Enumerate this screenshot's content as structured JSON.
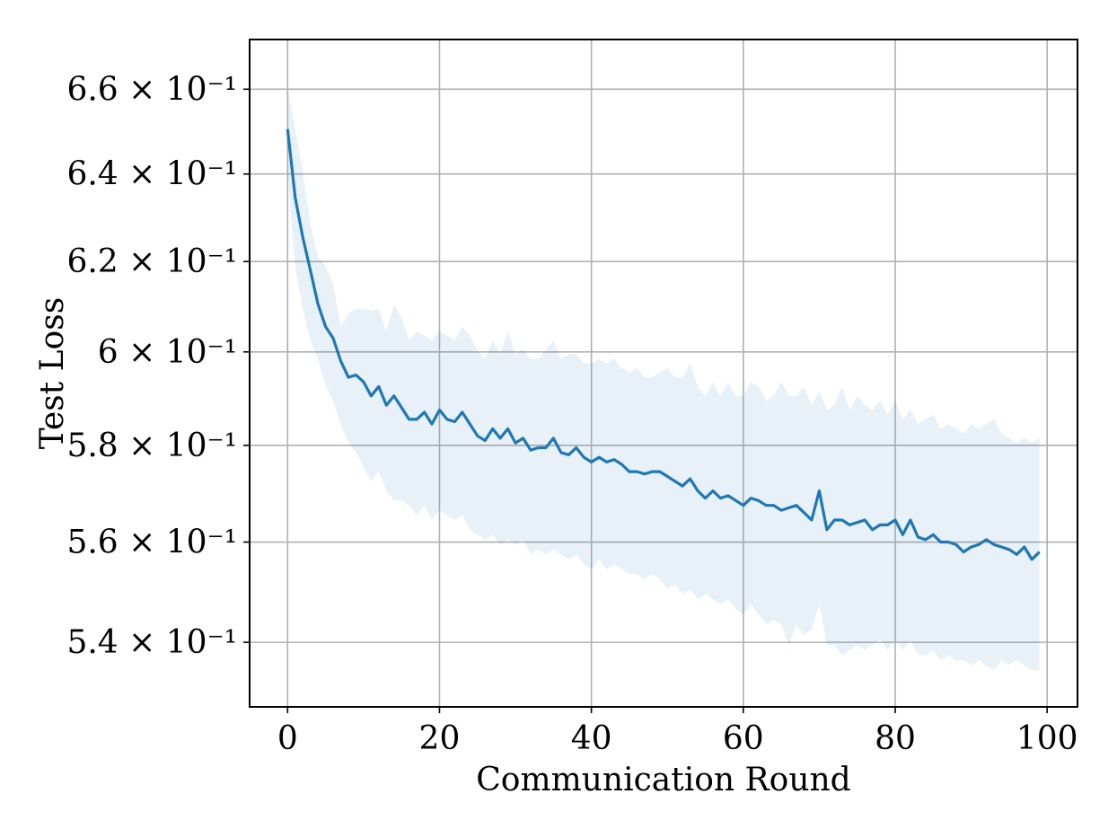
{
  "chart_data": {
    "type": "line",
    "title": "",
    "xlabel": "Communication Round",
    "ylabel": "Test Loss",
    "xlim": [
      -5,
      104
    ],
    "ylim": [
      0.5275,
      0.672
    ],
    "yscale": "log",
    "grid": true,
    "x_ticks": [
      0,
      20,
      40,
      60,
      80,
      100
    ],
    "y_ticks": [
      {
        "value": 0.54,
        "label": "5.4 × 10⁻¹"
      },
      {
        "value": 0.56,
        "label": "5.6 × 10⁻¹"
      },
      {
        "value": 0.58,
        "label": "5.8 × 10⁻¹"
      },
      {
        "value": 0.6,
        "label": "6 × 10⁻¹"
      },
      {
        "value": 0.62,
        "label": "6.2 × 10⁻¹"
      },
      {
        "value": 0.64,
        "label": "6.4 × 10⁻¹"
      },
      {
        "value": 0.66,
        "label": "6.6 × 10⁻¹"
      }
    ],
    "colors": {
      "line": "#1f77b4",
      "band": "#1f77b4"
    },
    "series": [
      {
        "x": [
          0,
          1,
          2,
          3,
          4,
          5,
          6,
          7,
          8,
          9,
          10,
          11,
          12,
          13,
          14,
          15,
          16,
          17,
          18,
          19,
          20,
          21,
          22,
          23,
          24,
          25,
          26,
          27,
          28,
          29,
          30,
          31,
          32,
          33,
          34,
          35,
          36,
          37,
          38,
          39,
          40,
          41,
          42,
          43,
          44,
          45,
          46,
          47,
          48,
          49,
          50,
          51,
          52,
          53,
          54,
          55,
          56,
          57,
          58,
          59,
          60,
          61,
          62,
          63,
          64,
          65,
          66,
          67,
          68,
          69,
          70,
          71,
          72,
          73,
          74,
          75,
          76,
          77,
          78,
          79,
          80,
          81,
          82,
          83,
          84,
          85,
          86,
          87,
          88,
          89,
          90,
          91,
          92,
          93,
          94,
          95,
          96,
          97,
          98,
          99
        ],
        "y": [
          0.6505,
          0.6345,
          0.6255,
          0.618,
          0.6105,
          0.6055,
          0.603,
          0.598,
          0.5945,
          0.595,
          0.5935,
          0.5905,
          0.5925,
          0.5885,
          0.5905,
          0.588,
          0.5855,
          0.5855,
          0.587,
          0.5845,
          0.5875,
          0.5855,
          0.585,
          0.587,
          0.5845,
          0.582,
          0.581,
          0.5835,
          0.5815,
          0.5835,
          0.5805,
          0.5815,
          0.579,
          0.5795,
          0.5795,
          0.5815,
          0.5785,
          0.578,
          0.5795,
          0.5775,
          0.5765,
          0.5775,
          0.5765,
          0.577,
          0.576,
          0.5745,
          0.5745,
          0.574,
          0.5745,
          0.5745,
          0.5735,
          0.5725,
          0.5715,
          0.573,
          0.5705,
          0.569,
          0.5705,
          0.569,
          0.5695,
          0.5685,
          0.5675,
          0.569,
          0.5685,
          0.5675,
          0.5675,
          0.5665,
          0.567,
          0.5675,
          0.566,
          0.5645,
          0.5705,
          0.5625,
          0.5645,
          0.5645,
          0.5635,
          0.564,
          0.5645,
          0.5625,
          0.5635,
          0.5635,
          0.5645,
          0.5615,
          0.5645,
          0.561,
          0.5605,
          0.5615,
          0.56,
          0.56,
          0.5595,
          0.558,
          0.559,
          0.5595,
          0.5605,
          0.5595,
          0.559,
          0.5585,
          0.5575,
          0.559,
          0.5565,
          0.558
        ],
        "band_upper": [
          0.6605,
          0.6505,
          0.6405,
          0.6285,
          0.621,
          0.619,
          0.615,
          0.6055,
          0.6085,
          0.6095,
          0.6095,
          0.609,
          0.6095,
          0.6045,
          0.6105,
          0.6075,
          0.6025,
          0.6045,
          0.6035,
          0.6025,
          0.6045,
          0.6035,
          0.6025,
          0.6055,
          0.6035,
          0.6005,
          0.5985,
          0.6025,
          0.5995,
          0.6045,
          0.5995,
          0.6005,
          0.5985,
          0.5985,
          0.6005,
          0.6025,
          0.5985,
          0.5995,
          0.5995,
          0.5975,
          0.5975,
          0.5985,
          0.5975,
          0.5985,
          0.5965,
          0.5955,
          0.5965,
          0.5945,
          0.5945,
          0.5955,
          0.5965,
          0.5945,
          0.5945,
          0.5975,
          0.5925,
          0.5905,
          0.5935,
          0.5905,
          0.5935,
          0.5905,
          0.5905,
          0.5935,
          0.5925,
          0.5895,
          0.5905,
          0.5935,
          0.5905,
          0.5905,
          0.5925,
          0.5885,
          0.5915,
          0.5875,
          0.5885,
          0.5925,
          0.5875,
          0.5905,
          0.5885,
          0.5875,
          0.5895,
          0.5865,
          0.5895,
          0.5855,
          0.5875,
          0.5845,
          0.5855,
          0.5865,
          0.5835,
          0.5845,
          0.5835,
          0.5825,
          0.5845,
          0.5835,
          0.5845,
          0.5855,
          0.5825,
          0.5815,
          0.5805,
          0.5815,
          0.5805,
          0.5815
        ],
        "band_lower": [
          0.6405,
          0.6185,
          0.6095,
          0.6025,
          0.5985,
          0.5925,
          0.5895,
          0.5845,
          0.5805,
          0.5785,
          0.5755,
          0.5725,
          0.5745,
          0.5705,
          0.5685,
          0.5685,
          0.5675,
          0.5655,
          0.5675,
          0.5645,
          0.5665,
          0.5655,
          0.5645,
          0.5655,
          0.5625,
          0.5615,
          0.5605,
          0.5615,
          0.5595,
          0.5605,
          0.5595,
          0.5605,
          0.5575,
          0.5585,
          0.5575,
          0.5585,
          0.5575,
          0.5565,
          0.5575,
          0.5555,
          0.5545,
          0.5565,
          0.5545,
          0.5555,
          0.5545,
          0.5535,
          0.5535,
          0.5525,
          0.5535,
          0.5525,
          0.5505,
          0.5515,
          0.5495,
          0.5505,
          0.5485,
          0.5495,
          0.5485,
          0.5475,
          0.5485,
          0.5465,
          0.5455,
          0.5475,
          0.5455,
          0.5435,
          0.5445,
          0.5435,
          0.5395,
          0.5435,
          0.5415,
          0.5425,
          0.5475,
          0.5395,
          0.5395,
          0.5375,
          0.5385,
          0.5395,
          0.5385,
          0.5395,
          0.5405,
          0.5385,
          0.5405,
          0.5385,
          0.5405,
          0.5375,
          0.5375,
          0.5385,
          0.5365,
          0.5375,
          0.5365,
          0.5365,
          0.5355,
          0.5365,
          0.5355,
          0.5345,
          0.5365,
          0.5355,
          0.5365,
          0.5355,
          0.5345,
          0.5345
        ]
      }
    ]
  }
}
